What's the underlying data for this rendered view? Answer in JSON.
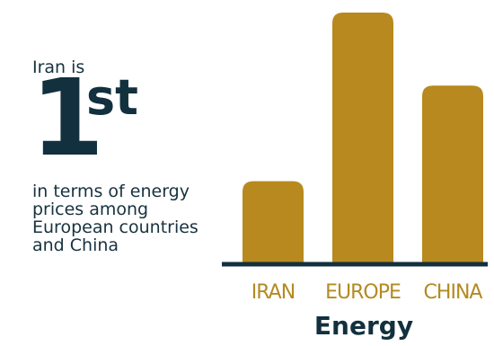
{
  "headline": {
    "intro": "Iran is",
    "rank_number": "1",
    "rank_suffix": "st",
    "caption": "in terms of energy prices among European countries and China"
  },
  "colors": {
    "bar": "#b8891f",
    "baseline": "#12303e",
    "text_dark": "#12303e",
    "label": "#b38a22"
  },
  "chart_data": {
    "type": "bar",
    "title": "Energy",
    "categories": [
      "IRAN",
      "EUROPE",
      "CHINA"
    ],
    "values": [
      33,
      100,
      71
    ],
    "ylim": [
      0,
      100
    ],
    "grid": false,
    "legend": "none"
  }
}
